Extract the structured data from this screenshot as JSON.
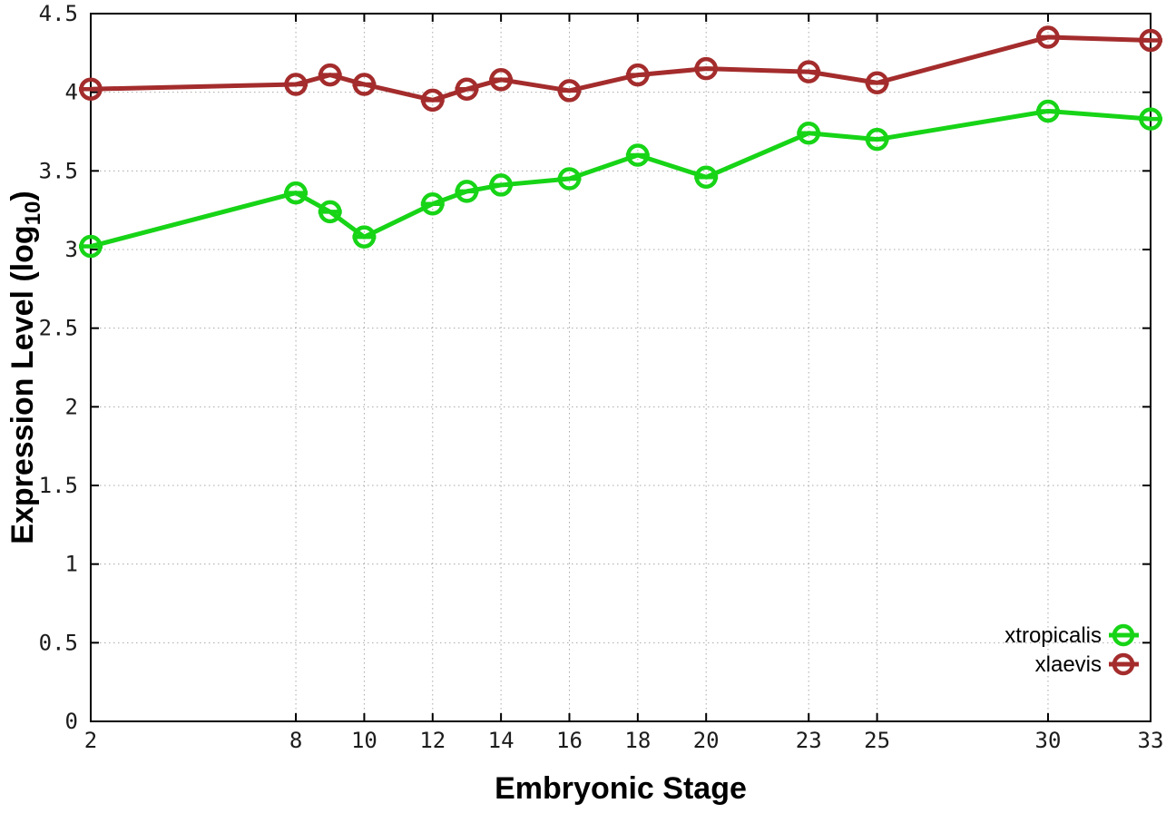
{
  "chart_data": {
    "type": "line",
    "title": "",
    "xlabel": "Embryonic Stage",
    "ylabel": "Expression Level (log10)",
    "ylabel_parts": {
      "pre": "Expression Level (log",
      "sub": "10",
      "post": ")"
    },
    "x": [
      2,
      8,
      9,
      10,
      12,
      13,
      14,
      16,
      18,
      20,
      23,
      25,
      30,
      33
    ],
    "xlim": [
      2,
      33
    ],
    "ylim": [
      0,
      4.5
    ],
    "grid": true,
    "legend_position": "inside-bottom-right",
    "xtick_values": [
      2,
      8,
      10,
      12,
      14,
      16,
      18,
      20,
      23,
      25,
      30,
      33
    ],
    "xtick_labels": [
      "2",
      "8",
      "10",
      "12",
      "14",
      "16",
      "18",
      "20",
      "23",
      "25",
      "30",
      "33"
    ],
    "ytick_values": [
      0,
      0.5,
      1,
      1.5,
      2,
      2.5,
      3,
      3.5,
      4,
      4.5
    ],
    "ytick_labels": [
      "0",
      "0.5",
      "1",
      "1.5",
      "2",
      "2.5",
      "3",
      "3.5",
      "4",
      "4.5"
    ],
    "series": [
      {
        "name": "xtropicalis",
        "color": "#17d417",
        "marker": "open-circle-with-bar",
        "values": [
          3.02,
          3.36,
          3.24,
          3.08,
          3.29,
          3.37,
          3.41,
          3.45,
          3.6,
          3.46,
          3.74,
          3.7,
          3.88,
          3.83
        ]
      },
      {
        "name": "xlaevis",
        "color": "#a42c2c",
        "marker": "open-circle-with-bar",
        "values": [
          4.02,
          4.05,
          4.11,
          4.05,
          3.95,
          4.02,
          4.08,
          4.01,
          4.11,
          4.15,
          4.13,
          4.06,
          4.35,
          4.33
        ]
      }
    ]
  },
  "colors": {
    "background": "#ffffff",
    "plot_border": "#000000",
    "grid": "#a8a8a8",
    "tick_text": "#1c1c1c"
  }
}
